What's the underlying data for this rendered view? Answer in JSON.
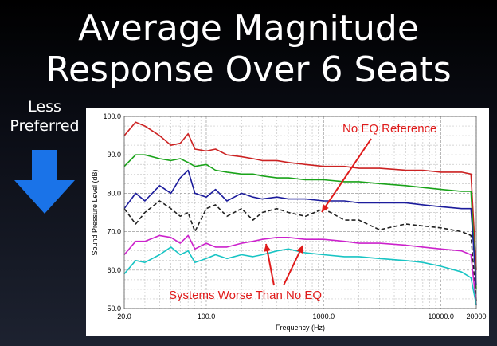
{
  "slide": {
    "title_line1": "Average Magnitude",
    "title_line2": "Response Over 6 Seats",
    "side_label_line1": "Less",
    "side_label_line2": "Preferred",
    "arrow_icon": "down-arrow-icon",
    "arrow_color": "#1a73e8"
  },
  "chart_data": {
    "type": "line",
    "xlabel": "Frequency (Hz)",
    "ylabel": "Sound Pressure Level (dB)",
    "xscale": "log",
    "xlim": [
      20,
      20000
    ],
    "ylim": [
      50,
      100
    ],
    "grid": true,
    "x_tick_labels": [
      {
        "value": 20,
        "label": "20.0"
      },
      {
        "value": 100,
        "label": "100.0"
      },
      {
        "value": 1000,
        "label": "1000.0"
      },
      {
        "value": 10000,
        "label": "10000.0"
      },
      {
        "value": 20000,
        "label": "20000"
      }
    ],
    "y_tick_labels": [
      {
        "value": 100,
        "label": "100.0"
      },
      {
        "value": 90,
        "label": "90.0"
      },
      {
        "value": 80,
        "label": "80.0"
      },
      {
        "value": 70,
        "label": "70.0"
      },
      {
        "value": 60,
        "label": "60.0"
      },
      {
        "value": 50,
        "label": "50.0"
      }
    ],
    "annotations": [
      {
        "text": "No EQ Reference",
        "color": "#e01b1b"
      },
      {
        "text": "Systems Worse Than No EQ",
        "color": "#e01b1b"
      }
    ],
    "x": [
      20,
      25,
      30,
      40,
      50,
      60,
      70,
      80,
      100,
      120,
      150,
      200,
      250,
      300,
      400,
      500,
      700,
      1000,
      1500,
      2000,
      3000,
      5000,
      7000,
      10000,
      15000,
      18000,
      20000
    ],
    "series": [
      {
        "color": "#cc2222",
        "dashed": false,
        "values": [
          95,
          98.5,
          97.5,
          95,
          92.5,
          93,
          95.5,
          91.5,
          91,
          91.5,
          90,
          89.5,
          89,
          88.5,
          88.5,
          88,
          87.5,
          87,
          87,
          86.5,
          86.5,
          86,
          86,
          85.5,
          85.5,
          85,
          60
        ]
      },
      {
        "color": "#1aa31a",
        "dashed": false,
        "values": [
          87,
          90,
          90,
          89,
          88.5,
          89,
          88,
          87,
          87.5,
          86,
          85.5,
          85,
          85,
          84.5,
          84,
          84,
          83.5,
          83.5,
          83,
          83,
          82.5,
          82,
          81.5,
          81,
          80.5,
          80.5,
          55
        ]
      },
      {
        "color": "#1c1c9c",
        "dashed": false,
        "values": [
          76,
          80,
          78,
          82,
          80,
          84,
          86,
          80,
          79,
          81,
          78,
          80,
          79,
          78.5,
          79,
          78.5,
          78.5,
          78,
          78,
          77.5,
          77.5,
          77.5,
          77,
          76.5,
          76,
          76,
          56
        ]
      },
      {
        "color": "#222222",
        "dashed": true,
        "values": [
          76,
          72,
          75,
          78,
          76,
          74,
          75,
          70,
          76,
          77,
          74,
          76,
          73,
          75,
          76,
          75,
          74,
          76,
          73,
          73,
          70.5,
          72,
          71.5,
          71,
          70,
          69,
          52
        ]
      },
      {
        "color": "#cc22cc",
        "dashed": false,
        "values": [
          64,
          67.5,
          67.5,
          69,
          68.5,
          67,
          69,
          65.5,
          67,
          66,
          66,
          67,
          67.5,
          68,
          68.5,
          68.5,
          68,
          68,
          67.5,
          67,
          67,
          66.5,
          66,
          65.5,
          65,
          64,
          51
        ]
      },
      {
        "color": "#18c4c4",
        "dashed": false,
        "values": [
          59,
          62.5,
          62,
          64,
          66,
          64,
          65,
          62,
          63,
          64,
          63,
          64,
          63.5,
          64,
          65,
          65.5,
          64.5,
          64,
          63.5,
          63.5,
          63,
          62.5,
          62,
          61,
          59.5,
          58,
          51
        ]
      }
    ]
  }
}
